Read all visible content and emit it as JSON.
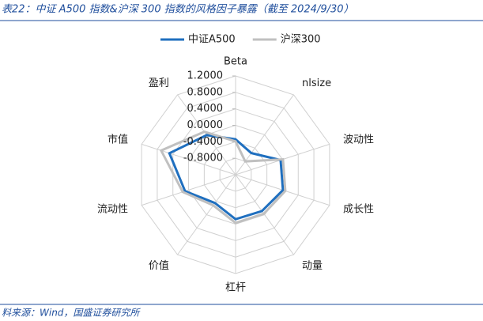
{
  "chart_data": {
    "type": "radar",
    "title": "表22：中证 A500 指数&沪深 300 指数的风格因子暴露（截至 2024/9/30）",
    "source": "料来源：Wind，国盛证券研究所",
    "categories": [
      "Beta",
      "nlsize",
      "波动性",
      "成长性",
      "动量",
      "杠杆",
      "价值",
      "流动性",
      "市值",
      "盈利"
    ],
    "series": [
      {
        "name": "中证A500",
        "color": "#1f6fbf",
        "values": [
          -0.34,
          -0.55,
          -0.05,
          0.01,
          -0.11,
          -0.12,
          -0.35,
          0.09,
          0.49,
          -0.01
        ]
      },
      {
        "name": "沪深300",
        "color": "#c0c0c0",
        "values": [
          -0.39,
          -0.8,
          0.01,
          0.07,
          -0.03,
          -0.03,
          -0.28,
          0.15,
          0.7,
          0.09
        ]
      }
    ],
    "ylim": [
      -1.2,
      1.2
    ],
    "yticks": [
      {
        "value": 1.2,
        "label": "1.2000"
      },
      {
        "value": 0.8,
        "label": "0.8000"
      },
      {
        "value": 0.4,
        "label": "0.4000"
      },
      {
        "value": 0,
        "label": "0.0000"
      },
      {
        "value": -0.4,
        "label": "-0.4000"
      },
      {
        "value": -0.8,
        "label": "-0.8000"
      }
    ],
    "grid": true,
    "legend": "top"
  }
}
